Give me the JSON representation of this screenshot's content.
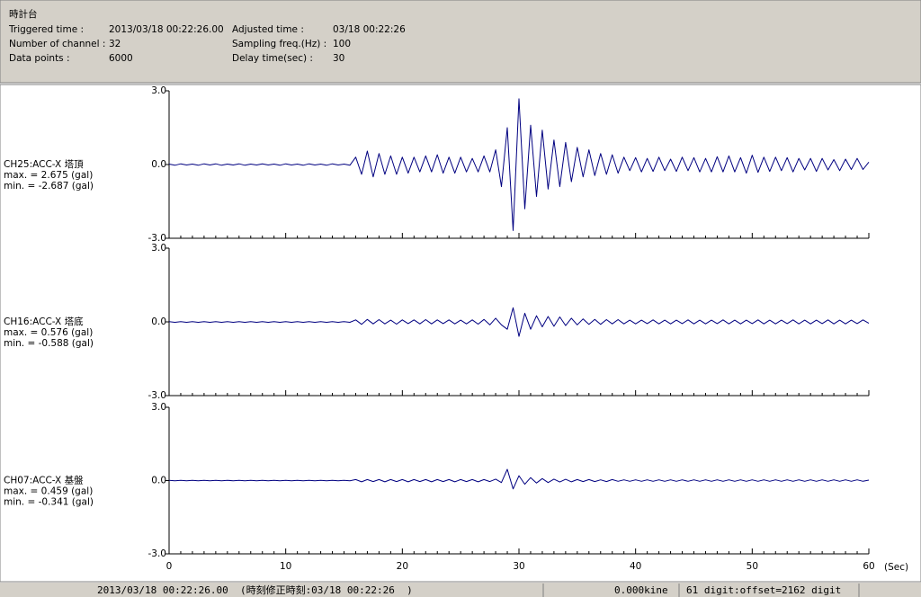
{
  "header": {
    "title": "時計台",
    "fields": [
      {
        "label": "Triggered time :",
        "value": "2013/03/18 00:22:26.00"
      },
      {
        "label": "Number of channel :",
        "value": "32"
      },
      {
        "label": "Data points :",
        "value": "6000"
      },
      {
        "label": "Adjusted time :",
        "value": "03/18 00:22:26"
      },
      {
        "label": "Sampling freq.(Hz) :",
        "value": "100"
      },
      {
        "label": "Delay time(sec) :",
        "value": "30"
      }
    ]
  },
  "time_axis": {
    "xlim": [
      0,
      60
    ],
    "xticks": [
      0,
      10,
      20,
      30,
      40,
      50,
      60
    ],
    "xlabel": "(Sec)",
    "x": [
      0,
      0.5,
      1,
      1.5,
      2,
      2.5,
      3,
      3.5,
      4,
      4.5,
      5,
      5.5,
      6,
      6.5,
      7,
      7.5,
      8,
      8.5,
      9,
      9.5,
      10,
      10.5,
      11,
      11.5,
      12,
      12.5,
      13,
      13.5,
      14,
      14.5,
      15,
      15.5,
      16,
      16.5,
      17,
      17.5,
      18,
      18.5,
      19,
      19.5,
      20,
      20.5,
      21,
      21.5,
      22,
      22.5,
      23,
      23.5,
      24,
      24.5,
      25,
      25.5,
      26,
      26.5,
      27,
      27.5,
      28,
      28.5,
      29,
      29.5,
      30,
      30.5,
      31,
      31.5,
      32,
      32.5,
      33,
      33.5,
      34,
      34.5,
      35,
      35.5,
      36,
      36.5,
      37,
      37.5,
      38,
      38.5,
      39,
      39.5,
      40,
      40.5,
      41,
      41.5,
      42,
      42.5,
      43,
      43.5,
      44,
      44.5,
      45,
      45.5,
      46,
      46.5,
      47,
      47.5,
      48,
      48.5,
      49,
      49.5,
      50,
      50.5,
      51,
      51.5,
      52,
      52.5,
      53,
      53.5,
      54,
      54.5,
      55,
      55.5,
      56,
      56.5,
      57,
      57.5,
      58,
      58.5,
      59,
      59.5,
      60
    ]
  },
  "chart_data": [
    {
      "type": "line",
      "label": "CH25:ACC-X 塔頂",
      "max_text": "max. = 2.675 (gal)",
      "min_text": "min. = -2.687 (gal)",
      "color": "#000080",
      "ylim": [
        -3,
        3
      ],
      "yticks": [
        {
          "value": 3,
          "label": "3.0"
        },
        {
          "value": 0,
          "label": "0.0"
        },
        {
          "value": -3,
          "label": "-3.0"
        }
      ],
      "values": [
        0.02,
        -0.03,
        0.03,
        -0.02,
        0.02,
        -0.03,
        0.03,
        -0.02,
        0.03,
        -0.03,
        0.02,
        -0.02,
        0.03,
        -0.03,
        0.02,
        -0.02,
        0.03,
        -0.02,
        0.02,
        -0.03,
        0.03,
        -0.02,
        0.02,
        -0.03,
        0.03,
        -0.02,
        0.02,
        -0.03,
        0.03,
        -0.02,
        0.02,
        -0.03,
        0.3,
        -0.4,
        0.55,
        -0.5,
        0.45,
        -0.4,
        0.35,
        -0.4,
        0.3,
        -0.35,
        0.3,
        -0.3,
        0.35,
        -0.3,
        0.4,
        -0.35,
        0.3,
        -0.35,
        0.3,
        -0.3,
        0.25,
        -0.3,
        0.35,
        -0.3,
        0.6,
        -0.9,
        1.5,
        -2.687,
        2.675,
        -1.8,
        1.6,
        -1.3,
        1.4,
        -1.0,
        1.0,
        -0.9,
        0.9,
        -0.7,
        0.7,
        -0.5,
        0.6,
        -0.45,
        0.45,
        -0.4,
        0.4,
        -0.35,
        0.3,
        -0.25,
        0.28,
        -0.3,
        0.25,
        -0.28,
        0.3,
        -0.25,
        0.22,
        -0.28,
        0.3,
        -0.25,
        0.28,
        -0.3,
        0.25,
        -0.3,
        0.32,
        -0.3,
        0.35,
        -0.3,
        0.28,
        -0.35,
        0.38,
        -0.32,
        0.3,
        -0.28,
        0.3,
        -0.25,
        0.28,
        -0.3,
        0.25,
        -0.22,
        0.25,
        -0.28,
        0.25,
        -0.22,
        0.2,
        -0.25,
        0.22,
        -0.2,
        0.25,
        -0.2,
        0.1
      ]
    },
    {
      "type": "line",
      "label": "CH16:ACC-X 塔底",
      "max_text": "max. = 0.576 (gal)",
      "min_text": "min. = -0.588 (gal)",
      "color": "#000080",
      "ylim": [
        -3,
        3
      ],
      "yticks": [
        {
          "value": 3,
          "label": "3.0"
        },
        {
          "value": 0,
          "label": "0.0"
        },
        {
          "value": -3,
          "label": "-3.0"
        }
      ],
      "values": [
        0.01,
        -0.02,
        0.01,
        -0.02,
        0.01,
        -0.02,
        0.01,
        -0.02,
        0.01,
        -0.02,
        0.01,
        -0.02,
        0.01,
        -0.02,
        0.01,
        -0.02,
        0.01,
        -0.02,
        0.01,
        -0.02,
        0.01,
        -0.02,
        0.01,
        -0.02,
        0.01,
        -0.02,
        0.01,
        -0.02,
        0.01,
        -0.02,
        0.01,
        -0.02,
        0.08,
        -0.1,
        0.1,
        -0.08,
        0.09,
        -0.08,
        0.07,
        -0.09,
        0.08,
        -0.07,
        0.08,
        -0.08,
        0.09,
        -0.08,
        0.08,
        -0.07,
        0.08,
        -0.08,
        0.07,
        -0.08,
        0.08,
        -0.09,
        0.1,
        -0.12,
        0.15,
        -0.12,
        -0.3,
        0.576,
        -0.588,
        0.35,
        -0.3,
        0.25,
        -0.2,
        0.22,
        -0.18,
        0.2,
        -0.15,
        0.15,
        -0.12,
        0.12,
        -0.1,
        0.1,
        -0.1,
        0.09,
        -0.08,
        0.09,
        -0.08,
        0.07,
        -0.08,
        0.07,
        -0.07,
        0.08,
        -0.08,
        0.07,
        -0.08,
        0.07,
        -0.07,
        0.08,
        -0.08,
        0.07,
        -0.08,
        0.07,
        -0.07,
        0.08,
        -0.08,
        0.07,
        -0.08,
        0.07,
        -0.07,
        0.08,
        -0.08,
        0.07,
        -0.08,
        0.07,
        -0.07,
        0.08,
        -0.08,
        0.07,
        -0.08,
        0.07,
        -0.07,
        0.08,
        -0.08,
        0.07,
        -0.08,
        0.07,
        -0.07,
        0.08,
        -0.06
      ]
    },
    {
      "type": "line",
      "label": "CH07:ACC-X 基盤",
      "max_text": "max. = 0.459 (gal)",
      "min_text": "min. = -0.341 (gal)",
      "color": "#000080",
      "ylim": [
        -3,
        3
      ],
      "yticks": [
        {
          "value": 3,
          "label": "3.0"
        },
        {
          "value": 0,
          "label": "0.0"
        },
        {
          "value": -3,
          "label": "-3.0"
        }
      ],
      "values": [
        0.01,
        -0.01,
        0.01,
        -0.01,
        0.01,
        -0.01,
        0.01,
        -0.01,
        0.01,
        -0.01,
        0.01,
        -0.01,
        0.01,
        -0.01,
        0.01,
        -0.01,
        0.01,
        -0.01,
        0.01,
        -0.01,
        0.01,
        -0.01,
        0.01,
        -0.01,
        0.01,
        -0.01,
        0.01,
        -0.01,
        0.01,
        -0.01,
        0.01,
        -0.01,
        0.04,
        -0.05,
        0.04,
        -0.04,
        0.04,
        -0.05,
        0.04,
        -0.04,
        0.04,
        -0.05,
        0.04,
        -0.04,
        0.04,
        -0.05,
        0.04,
        -0.04,
        0.04,
        -0.05,
        0.04,
        -0.04,
        0.04,
        -0.05,
        0.04,
        -0.04,
        0.06,
        -0.08,
        0.459,
        -0.341,
        0.2,
        -0.15,
        0.12,
        -0.1,
        0.08,
        -0.08,
        0.06,
        -0.06,
        0.05,
        -0.05,
        0.04,
        -0.04,
        0.04,
        -0.04,
        0.03,
        -0.04,
        0.04,
        -0.03,
        0.03,
        -0.03,
        0.03,
        -0.03,
        0.03,
        -0.03,
        0.03,
        -0.03,
        0.03,
        -0.03,
        0.03,
        -0.03,
        0.03,
        -0.03,
        0.03,
        -0.03,
        0.03,
        -0.03,
        0.03,
        -0.03,
        0.03,
        -0.03,
        0.03,
        -0.03,
        0.03,
        -0.03,
        0.03,
        -0.03,
        0.03,
        -0.03,
        0.03,
        -0.03,
        0.03,
        -0.03,
        0.03,
        -0.03,
        0.03,
        -0.03,
        0.03,
        -0.03,
        0.03,
        -0.03,
        0.02
      ]
    }
  ],
  "status": {
    "time": "2013/03/18 00:22:26.00  (時刻修正時刻:03/18 00:22:26  )",
    "velocity": "0.000kine",
    "digit": "61 digit:offset=2162 digit"
  }
}
